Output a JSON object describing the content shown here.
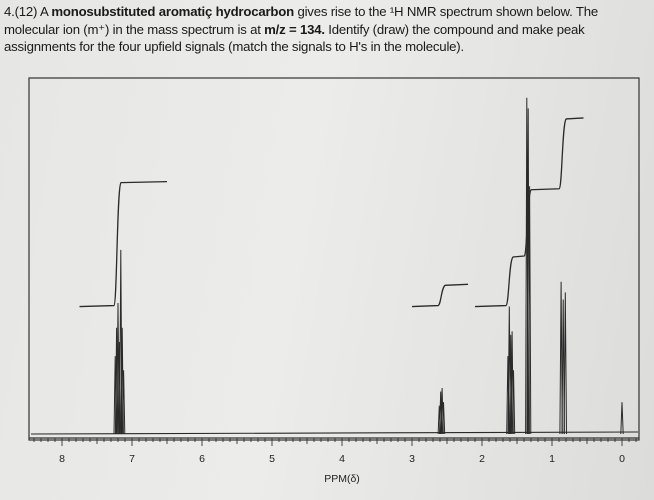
{
  "question": {
    "number": "4.(12)",
    "part1": " A ",
    "bold1": "monosubstituted aromatiç hydrocarbon",
    "part2": " gives rise to the ¹H NMR spectrum shown below. The molecular ion (m⁺) in the mass spectrum is at ",
    "bold2": "m/z = 134.",
    "part3": "  Identify (draw) the compound and make peak assignments for the four upfield signals (match the signals to H's in the molecule)."
  },
  "chart_data": {
    "type": "line",
    "title": "",
    "xlabel": "PPM(δ)",
    "ylabel": "",
    "xlim": [
      8.4,
      -0.25
    ],
    "x_reversed": true,
    "ylim": [
      0,
      100
    ],
    "x_ticks": [
      8,
      7,
      6,
      5,
      4,
      3,
      2,
      1,
      0
    ],
    "minor_tick_step": 0.1,
    "grid": false,
    "line_color": "#2a2a2a",
    "peaks": [
      {
        "ppm": 7.24,
        "intensity": 22
      },
      {
        "ppm": 7.22,
        "intensity": 30
      },
      {
        "ppm": 7.2,
        "intensity": 37
      },
      {
        "ppm": 7.18,
        "intensity": 26
      },
      {
        "ppm": 7.16,
        "intensity": 52
      },
      {
        "ppm": 7.14,
        "intensity": 30
      },
      {
        "ppm": 7.12,
        "intensity": 18
      },
      {
        "ppm": 2.61,
        "intensity": 8
      },
      {
        "ppm": 2.59,
        "intensity": 12
      },
      {
        "ppm": 2.57,
        "intensity": 13
      },
      {
        "ppm": 2.55,
        "intensity": 9
      },
      {
        "ppm": 1.63,
        "intensity": 22
      },
      {
        "ppm": 1.61,
        "intensity": 36
      },
      {
        "ppm": 1.59,
        "intensity": 28
      },
      {
        "ppm": 1.57,
        "intensity": 29
      },
      {
        "ppm": 1.55,
        "intensity": 18
      },
      {
        "ppm": 1.36,
        "intensity": 95
      },
      {
        "ppm": 1.34,
        "intensity": 92
      },
      {
        "ppm": 1.32,
        "intensity": 70
      },
      {
        "ppm": 0.87,
        "intensity": 43
      },
      {
        "ppm": 0.84,
        "intensity": 38
      },
      {
        "ppm": 0.81,
        "intensity": 40
      },
      {
        "ppm": 0.0,
        "intensity": 9
      }
    ],
    "integrals": [
      {
        "from_ppm": 7.75,
        "to_ppm": 6.5,
        "step_ppm": 7.2,
        "start": 36,
        "end": 71
      },
      {
        "from_ppm": 3.0,
        "to_ppm": 2.2,
        "step_ppm": 2.57,
        "start": 36,
        "end": 42
      },
      {
        "from_ppm": 2.1,
        "to_ppm": 0.55,
        "steps": [
          {
            "ppm": 1.6,
            "end": 50
          },
          {
            "ppm": 1.34,
            "end": 69
          },
          {
            "ppm": 0.84,
            "end": 89
          }
        ],
        "start": 36
      }
    ]
  }
}
